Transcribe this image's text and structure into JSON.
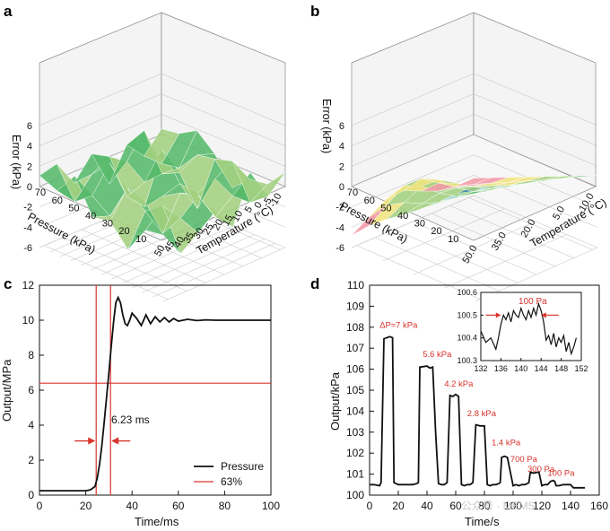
{
  "panels": {
    "a": "a",
    "b": "b",
    "c": "c",
    "d": "d"
  },
  "watermark": "公众号 · MEMS",
  "chart_data": [
    {
      "panel": "a",
      "type": "surface",
      "zlabel": "Error (kPa)",
      "xlabel": "Pressure (kPa)",
      "ylabel": "Temperature (°C)",
      "z_ticks": [
        "6",
        "4",
        "2",
        "0",
        "-2",
        "-4",
        "-6"
      ],
      "pressure_ticks": [
        "70",
        "60",
        "50",
        "40",
        "30",
        "20",
        "10"
      ],
      "temperature_ticks": [
        "50",
        "45",
        "40",
        "35",
        "30",
        "25",
        "20",
        "15",
        "10",
        "5",
        "0",
        "-5",
        "-10"
      ],
      "colors": [
        "#2f7fae",
        "#a7dcea",
        "#57b96b",
        "#a3d07f",
        "#f0e47e",
        "#f4c6cf"
      ]
    },
    {
      "panel": "b",
      "type": "surface",
      "zlabel": "Error (kPa)",
      "xlabel": "Pressure (kPa)",
      "ylabel": "Temperature (°C)",
      "z_ticks": [
        "6",
        "4",
        "2",
        "0",
        "-2",
        "-4",
        "-6"
      ],
      "pressure_ticks": [
        "70",
        "60",
        "50",
        "40",
        "30",
        "20",
        "10"
      ],
      "temperature_ticks": [
        "50.0",
        "35.0",
        "20.0",
        "5.0",
        "-10.0"
      ],
      "colors": [
        "#2f7fae",
        "#a7dcea",
        "#57b96b",
        "#a3d07f",
        "#f0e47e",
        "#f29aa7",
        "#e2555f"
      ]
    },
    {
      "panel": "c",
      "type": "line",
      "xlabel": "Time/ms",
      "ylabel": "Output/MPa",
      "xlim": [
        0,
        100
      ],
      "ylim": [
        0,
        12
      ],
      "x_ticks": [
        "0",
        "20",
        "40",
        "60",
        "80",
        "100"
      ],
      "y_ticks": [
        "0",
        "2",
        "4",
        "6",
        "8",
        "10",
        "12"
      ],
      "series": [
        {
          "name": "Pressure",
          "color": "#111111",
          "x": [
            0,
            10,
            20,
            22,
            24,
            25,
            26,
            27,
            28,
            29,
            30,
            31,
            32,
            33,
            34,
            35,
            36,
            37,
            38,
            39,
            40,
            42,
            44,
            46,
            48,
            50,
            52,
            54,
            56,
            58,
            60,
            64,
            68,
            72,
            76,
            80,
            86,
            92,
            100
          ],
          "y": [
            0.25,
            0.25,
            0.25,
            0.3,
            0.5,
            1.0,
            1.8,
            2.9,
            4.2,
            5.6,
            7.0,
            8.5,
            9.9,
            11.0,
            11.3,
            11.0,
            10.3,
            9.8,
            9.7,
            10.0,
            10.4,
            10.1,
            9.7,
            10.3,
            9.8,
            10.2,
            9.9,
            10.15,
            9.9,
            10.1,
            9.95,
            10.05,
            9.98,
            10.02,
            10.0,
            10.0,
            10.0,
            10.0,
            10.0
          ]
        },
        {
          "name": "63%",
          "color": "#d8332b",
          "style": "reference lines"
        }
      ],
      "reference_lines": {
        "vertical_x": [
          24.5,
          30.7
        ],
        "horizontal_y": 6.4
      },
      "annotation": "6.23 ms"
    },
    {
      "panel": "d",
      "type": "line",
      "xlabel": "Time/s",
      "ylabel": "Output/kPa",
      "xlim": [
        0,
        160
      ],
      "ylim": [
        100,
        110
      ],
      "x_ticks": [
        "0",
        "20",
        "40",
        "60",
        "80",
        "100",
        "120",
        "140",
        "160"
      ],
      "y_ticks": [
        "100",
        "101",
        "102",
        "103",
        "104",
        "105",
        "106",
        "107",
        "108",
        "109",
        "110"
      ],
      "series": [
        {
          "name": "Output",
          "color": "#111111",
          "x": [
            0,
            3,
            7,
            8,
            10,
            14,
            16,
            17,
            20,
            25,
            30,
            33,
            34,
            35,
            40,
            42,
            44,
            46,
            48,
            50,
            52,
            53,
            54,
            56,
            58,
            60,
            62,
            64,
            66,
            68,
            70,
            71,
            72,
            74,
            77,
            80,
            82,
            84,
            86,
            88,
            90,
            91,
            92,
            94,
            96,
            100,
            102,
            104,
            106,
            108,
            110,
            111,
            112,
            114,
            118,
            120,
            122,
            124,
            126,
            128,
            129,
            130,
            132,
            135,
            140,
            142,
            146,
            150
          ],
          "y": [
            100.5,
            100.5,
            100.45,
            100.6,
            107.45,
            107.55,
            107.5,
            100.6,
            100.5,
            100.5,
            100.5,
            100.55,
            100.6,
            106.1,
            106.15,
            106.05,
            106.1,
            103.0,
            100.55,
            100.5,
            100.5,
            100.55,
            100.6,
            104.75,
            104.7,
            104.8,
            104.7,
            100.5,
            100.45,
            100.5,
            100.5,
            100.55,
            100.6,
            103.35,
            103.3,
            103.3,
            100.5,
            100.45,
            100.5,
            100.5,
            100.55,
            100.6,
            101.8,
            101.85,
            101.8,
            100.45,
            100.5,
            100.45,
            100.5,
            100.5,
            100.55,
            100.6,
            101.1,
            101.05,
            101.1,
            100.45,
            100.5,
            100.5,
            100.65,
            100.7,
            100.65,
            100.45,
            100.45,
            100.5,
            100.5,
            100.35,
            100.35,
            100.35
          ]
        }
      ],
      "annotations": [
        "ΔP≈7 kPa",
        "5.6 kPa",
        "4.2 kPa",
        "2.8 kPa",
        "1.4 kPa",
        "700 Pa",
        "300 Pa",
        "100 Pa"
      ],
      "inset": {
        "xlim": [
          132,
          152
        ],
        "ylim": [
          100.3,
          100.6
        ],
        "x_ticks": [
          "132",
          "136",
          "140",
          "144",
          "148",
          "152"
        ],
        "y_ticks": [
          "100.3",
          "100.4",
          "100.5",
          "100.6"
        ],
        "label": "100 Pa",
        "x": [
          132,
          133,
          134,
          135,
          135.5,
          136,
          136.5,
          137,
          137.5,
          138,
          138.5,
          139,
          139.5,
          140,
          140.5,
          141,
          141.5,
          142,
          142.5,
          143,
          143.5,
          144,
          144.5,
          145,
          145.5,
          146,
          146.5,
          147,
          147.5,
          148,
          148.5,
          149,
          149.5,
          150,
          150.5,
          151
        ],
        "y": [
          100.43,
          100.38,
          100.4,
          100.35,
          100.4,
          100.46,
          100.5,
          100.48,
          100.51,
          100.47,
          100.52,
          100.5,
          100.49,
          100.53,
          100.5,
          100.48,
          100.52,
          100.49,
          100.53,
          100.5,
          100.55,
          100.52,
          100.47,
          100.39,
          100.41,
          100.37,
          100.42,
          100.36,
          100.4,
          100.38,
          100.41,
          100.34,
          100.38,
          100.33,
          100.36,
          100.4
        ]
      }
    }
  ]
}
